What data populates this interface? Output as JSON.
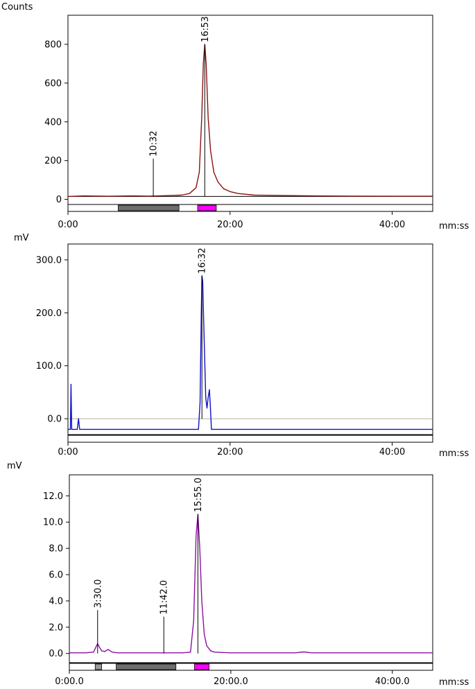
{
  "chart_data": [
    {
      "type": "line",
      "ylabel": "Counts",
      "xunit": "mm:ss",
      "xlim": [
        0,
        45
      ],
      "ylim": [
        -30,
        950
      ],
      "yticks": [
        {
          "v": 0,
          "label": "0"
        },
        {
          "v": 200,
          "label": "200"
        },
        {
          "v": 400,
          "label": "400"
        },
        {
          "v": 600,
          "label": "600"
        },
        {
          "v": 800,
          "label": "800"
        }
      ],
      "xticks": [
        {
          "v": 0,
          "label": "0:00"
        },
        {
          "v": 20,
          "label": "20:00"
        },
        {
          "v": 40,
          "label": "40:00"
        }
      ],
      "trace_color": "#8b1010",
      "series": [
        {
          "x": [
            0,
            2,
            5,
            8,
            10,
            12,
            14,
            15,
            15.8,
            16.2,
            16.5,
            16.7,
            16.88,
            17.05,
            17.3,
            17.6,
            18.0,
            18.5,
            19.2,
            20,
            21,
            23,
            26,
            30,
            35,
            40,
            45
          ],
          "values": [
            15,
            18,
            16,
            18,
            17,
            19,
            22,
            30,
            60,
            140,
            420,
            700,
            800,
            700,
            420,
            250,
            140,
            90,
            55,
            40,
            30,
            22,
            20,
            18,
            17,
            16,
            16
          ]
        }
      ],
      "baseline": 15,
      "peaks": [
        {
          "x": 10.53,
          "label": "10:32",
          "height": 210
        },
        {
          "x": 16.88,
          "label": "16:53",
          "height": 800
        }
      ],
      "bands": [
        {
          "x0": 6.2,
          "x1": 13.7,
          "color": "#6e6e6e"
        },
        {
          "x0": 16.0,
          "x1": 18.3,
          "color": "#ff00ff"
        }
      ]
    },
    {
      "type": "line",
      "ylabel": "mV",
      "xunit": "mm:ss",
      "xlim": [
        0,
        45
      ],
      "ylim": [
        -30,
        330
      ],
      "yticks": [
        {
          "v": 0,
          "label": "0.0"
        },
        {
          "v": 100,
          "label": "100.0"
        },
        {
          "v": 200,
          "label": "200.0"
        },
        {
          "v": 300,
          "label": "300.0"
        }
      ],
      "xticks": [
        {
          "v": 0,
          "label": "0:00"
        },
        {
          "v": 20,
          "label": "20:00"
        },
        {
          "v": 40,
          "label": "40:00"
        }
      ],
      "trace_color": "#1010c8",
      "series": [
        {
          "x": [
            0,
            0.15,
            0.3,
            0.38,
            0.46,
            0.6,
            1.0,
            1.15,
            1.3,
            1.45,
            2,
            5,
            10,
            15,
            16.1,
            16.3,
            16.45,
            16.53,
            16.62,
            16.8,
            17.0,
            17.15,
            17.3,
            17.45,
            17.55,
            17.7,
            18,
            20,
            25,
            30,
            35,
            40,
            45
          ],
          "values": [
            -20,
            -20,
            -20,
            65,
            -20,
            -20,
            -20,
            -20,
            0,
            -20,
            -20,
            -20,
            -20,
            -20,
            -20,
            30,
            200,
            270,
            260,
            150,
            40,
            20,
            40,
            55,
            30,
            -20,
            -20,
            -20,
            -20,
            -20,
            -20,
            -20,
            -20
          ]
        }
      ],
      "zero_line": 0,
      "peaks": [
        {
          "x": 16.53,
          "label": "16:32",
          "height": 270
        }
      ],
      "bands": []
    },
    {
      "type": "line",
      "ylabel": "mV",
      "xunit": "mm:ss",
      "xlim": [
        0,
        45
      ],
      "ylim": [
        -0.7,
        13.6
      ],
      "yticks": [
        {
          "v": 0,
          "label": "0.0"
        },
        {
          "v": 2,
          "label": "2.0"
        },
        {
          "v": 4,
          "label": "4.0"
        },
        {
          "v": 6,
          "label": "6.0"
        },
        {
          "v": 8,
          "label": "8.0"
        },
        {
          "v": 10,
          "label": "10.0"
        },
        {
          "v": 12,
          "label": "12.0"
        }
      ],
      "xticks": [
        {
          "v": 0,
          "label": "0:00.0"
        },
        {
          "v": 20,
          "label": "20:00.0"
        },
        {
          "v": 40,
          "label": "40:00.0"
        }
      ],
      "trace_color": "#8b10a0",
      "series": [
        {
          "x": [
            0,
            2,
            3.0,
            3.3,
            3.5,
            3.7,
            4.0,
            4.4,
            4.8,
            5.3,
            6,
            8,
            10,
            12,
            14,
            15.0,
            15.4,
            15.7,
            15.92,
            16.15,
            16.4,
            16.7,
            17.0,
            17.5,
            18,
            20,
            25,
            28,
            29,
            30,
            35,
            40,
            45
          ],
          "values": [
            0.05,
            0.05,
            0.1,
            0.5,
            0.75,
            0.5,
            0.2,
            0.15,
            0.3,
            0.1,
            0.05,
            0.05,
            0.05,
            0.05,
            0.05,
            0.1,
            2.5,
            9.0,
            10.6,
            8.0,
            4.0,
            1.5,
            0.6,
            0.2,
            0.1,
            0.05,
            0.05,
            0.05,
            0.12,
            0.05,
            0.05,
            0.05,
            0.05
          ]
        }
      ],
      "peaks": [
        {
          "x": 3.5,
          "label": "3:30.0",
          "height": 3.3
        },
        {
          "x": 11.7,
          "label": "11:42.0",
          "height": 2.8
        },
        {
          "x": 15.92,
          "label": "15:55.0",
          "height": 10.6
        }
      ],
      "bands": [
        {
          "x0": 3.2,
          "x1": 4.0,
          "color": "#9a9a9a"
        },
        {
          "x0": 5.8,
          "x1": 13.2,
          "color": "#6e6e6e"
        },
        {
          "x0": 15.5,
          "x1": 17.3,
          "color": "#ff00ff"
        }
      ]
    }
  ]
}
